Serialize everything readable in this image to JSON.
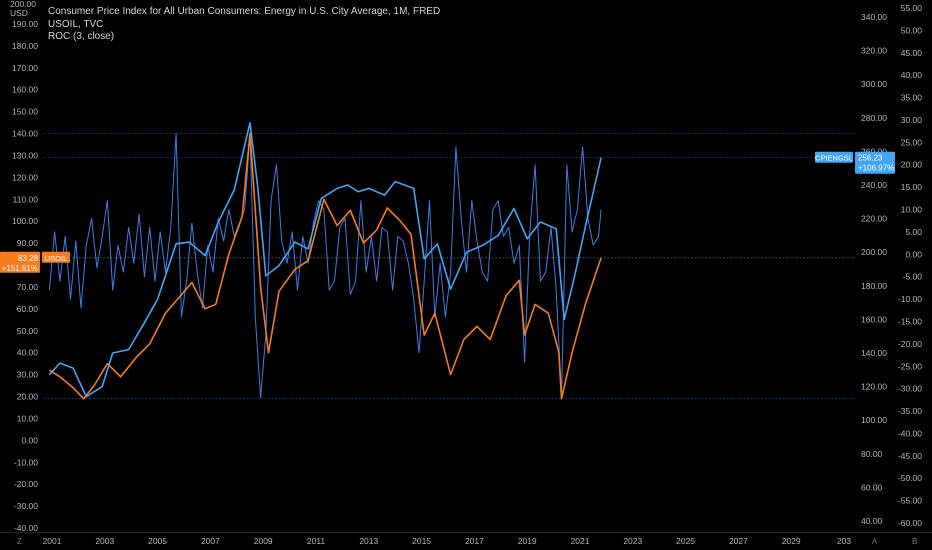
{
  "legend": {
    "main": "Consumer Price Index for All Urban Consumers: Energy in U.S. City Average, 1M, FRED",
    "usoil": "USOIL, TVC",
    "roc": "ROC (3, close)"
  },
  "currency": "USD",
  "currency_top": "200.00",
  "corner_left": "Z",
  "corner_right_a": "A",
  "corner_right_b": "B",
  "colors": {
    "background": "#000000",
    "cpi_line": "#42a5f5",
    "usoil_line": "#f57c1f",
    "roc_line": "#3d7de8",
    "axis_text": "#b2b5be"
  },
  "chart_data": {
    "type": "line",
    "x_axis": {
      "ticks": [
        "2001",
        "2003",
        "2005",
        "2007",
        "2009",
        "2011",
        "2013",
        "2015",
        "2017",
        "2019",
        "2021",
        "2023",
        "2025",
        "2027",
        "2029",
        "203"
      ]
    },
    "left_axis": {
      "label": "USD",
      "ticks": [
        "190.00",
        "180.00",
        "170.00",
        "160.00",
        "150.00",
        "140.00",
        "130.00",
        "120.00",
        "110.00",
        "100.00",
        "90.00",
        "80.00",
        "70.00",
        "60.00",
        "50.00",
        "40.00",
        "30.00",
        "20.00",
        "10.00",
        "0.00",
        "-10.00",
        "-20.00",
        "-30.00",
        "-40.00"
      ],
      "ylim": [
        -40,
        200
      ]
    },
    "mid_axis": {
      "ticks": [
        "340.00",
        "320.00",
        "300.00",
        "280.00",
        "260.00",
        "240.00",
        "220.00",
        "200.00",
        "180.00",
        "160.00",
        "140.00",
        "120.00",
        "100.00",
        "80.00",
        "60.00",
        "40.00"
      ],
      "ylim": [
        40,
        340
      ]
    },
    "right_axis": {
      "ticks": [
        "55.00",
        "50.00",
        "45.00",
        "40.00",
        "35.00",
        "30.00",
        "25.00",
        "20.00",
        "15.00",
        "10.00",
        "5.00",
        "0.00",
        "-5.00",
        "-10.00",
        "-15.00",
        "-20.00",
        "-25.00",
        "-30.00",
        "-35.00",
        "-40.00",
        "-45.00",
        "-50.00",
        "-55.00",
        "-60.00"
      ],
      "ylim": [
        -60,
        55
      ]
    },
    "series": [
      {
        "name": "CPIENGSL",
        "axis": "mid",
        "points": [
          [
            2000.9,
            127
          ],
          [
            2001.3,
            134
          ],
          [
            2001.8,
            131
          ],
          [
            2002.3,
            114
          ],
          [
            2002.9,
            120
          ],
          [
            2003.3,
            140
          ],
          [
            2003.9,
            142
          ],
          [
            2004.5,
            158
          ],
          [
            2005.0,
            172
          ],
          [
            2005.7,
            205
          ],
          [
            2006.2,
            206
          ],
          [
            2006.8,
            198
          ],
          [
            2007.3,
            218
          ],
          [
            2007.9,
            237
          ],
          [
            2008.5,
            277
          ],
          [
            2008.8,
            238
          ],
          [
            2009.1,
            186
          ],
          [
            2009.6,
            192
          ],
          [
            2010.2,
            206
          ],
          [
            2010.7,
            202
          ],
          [
            2011.2,
            232
          ],
          [
            2011.8,
            238
          ],
          [
            2012.2,
            240
          ],
          [
            2012.6,
            236
          ],
          [
            2013.0,
            238
          ],
          [
            2013.6,
            234
          ],
          [
            2014.0,
            242
          ],
          [
            2014.7,
            238
          ],
          [
            2015.1,
            196
          ],
          [
            2015.6,
            205
          ],
          [
            2016.1,
            178
          ],
          [
            2016.7,
            200
          ],
          [
            2017.3,
            204
          ],
          [
            2017.9,
            210
          ],
          [
            2018.5,
            226
          ],
          [
            2019.0,
            208
          ],
          [
            2019.5,
            218
          ],
          [
            2020.1,
            214
          ],
          [
            2020.4,
            160
          ],
          [
            2020.8,
            186
          ],
          [
            2021.2,
            215
          ],
          [
            2021.8,
            256.23
          ]
        ]
      },
      {
        "name": "USOIL",
        "axis": "left",
        "points": [
          [
            2000.9,
            32
          ],
          [
            2001.3,
            29
          ],
          [
            2001.8,
            24
          ],
          [
            2002.2,
            19
          ],
          [
            2002.6,
            25
          ],
          [
            2003.1,
            35
          ],
          [
            2003.6,
            29
          ],
          [
            2004.2,
            38
          ],
          [
            2004.7,
            44
          ],
          [
            2005.3,
            58
          ],
          [
            2005.8,
            65
          ],
          [
            2006.3,
            72
          ],
          [
            2006.8,
            60
          ],
          [
            2007.2,
            62
          ],
          [
            2007.7,
            85
          ],
          [
            2008.2,
            102
          ],
          [
            2008.5,
            140
          ],
          [
            2008.9,
            70
          ],
          [
            2009.2,
            40
          ],
          [
            2009.6,
            68
          ],
          [
            2010.2,
            78
          ],
          [
            2010.7,
            82
          ],
          [
            2011.3,
            110
          ],
          [
            2011.8,
            98
          ],
          [
            2012.3,
            105
          ],
          [
            2012.8,
            90
          ],
          [
            2013.3,
            96
          ],
          [
            2013.7,
            106
          ],
          [
            2014.2,
            100
          ],
          [
            2014.6,
            94
          ],
          [
            2015.1,
            48
          ],
          [
            2015.5,
            58
          ],
          [
            2016.1,
            30
          ],
          [
            2016.6,
            46
          ],
          [
            2017.1,
            52
          ],
          [
            2017.6,
            46
          ],
          [
            2018.2,
            66
          ],
          [
            2018.7,
            73
          ],
          [
            2018.9,
            48
          ],
          [
            2019.3,
            62
          ],
          [
            2019.8,
            58
          ],
          [
            2020.2,
            40
          ],
          [
            2020.3,
            19
          ],
          [
            2020.7,
            40
          ],
          [
            2021.2,
            62
          ],
          [
            2021.8,
            83.28
          ]
        ]
      },
      {
        "name": "ROC (3, close)",
        "axis": "right",
        "points": [
          [
            2000.9,
            -8
          ],
          [
            2001.1,
            5
          ],
          [
            2001.3,
            -6
          ],
          [
            2001.5,
            4
          ],
          [
            2001.7,
            -10
          ],
          [
            2001.9,
            3
          ],
          [
            2002.1,
            -12
          ],
          [
            2002.3,
            2
          ],
          [
            2002.5,
            8
          ],
          [
            2002.7,
            -3
          ],
          [
            2002.9,
            4
          ],
          [
            2003.1,
            12
          ],
          [
            2003.3,
            -8
          ],
          [
            2003.5,
            2
          ],
          [
            2003.7,
            -4
          ],
          [
            2003.9,
            6
          ],
          [
            2004.1,
            -2
          ],
          [
            2004.3,
            9
          ],
          [
            2004.5,
            -5
          ],
          [
            2004.7,
            6
          ],
          [
            2004.9,
            -6
          ],
          [
            2005.1,
            5
          ],
          [
            2005.3,
            -4
          ],
          [
            2005.5,
            6
          ],
          [
            2005.7,
            27
          ],
          [
            2005.9,
            -14
          ],
          [
            2006.1,
            -6
          ],
          [
            2006.3,
            7
          ],
          [
            2006.5,
            -4
          ],
          [
            2006.7,
            -12
          ],
          [
            2006.9,
            2
          ],
          [
            2007.1,
            -4
          ],
          [
            2007.3,
            8
          ],
          [
            2007.5,
            3
          ],
          [
            2007.7,
            10
          ],
          [
            2007.9,
            4
          ],
          [
            2008.1,
            7
          ],
          [
            2008.3,
            10
          ],
          [
            2008.5,
            27
          ],
          [
            2008.7,
            -14
          ],
          [
            2008.9,
            -32
          ],
          [
            2009.1,
            -18
          ],
          [
            2009.3,
            12
          ],
          [
            2009.5,
            20
          ],
          [
            2009.7,
            3
          ],
          [
            2009.9,
            -2
          ],
          [
            2010.1,
            5
          ],
          [
            2010.3,
            -8
          ],
          [
            2010.5,
            4
          ],
          [
            2010.7,
            -2
          ],
          [
            2010.9,
            7
          ],
          [
            2011.1,
            12
          ],
          [
            2011.3,
            10
          ],
          [
            2011.5,
            -8
          ],
          [
            2011.7,
            -6
          ],
          [
            2011.9,
            6
          ],
          [
            2012.1,
            8
          ],
          [
            2012.3,
            -9
          ],
          [
            2012.5,
            -6
          ],
          [
            2012.7,
            12
          ],
          [
            2012.9,
            -4
          ],
          [
            2013.1,
            4
          ],
          [
            2013.3,
            -6
          ],
          [
            2013.5,
            6
          ],
          [
            2013.7,
            5
          ],
          [
            2013.9,
            -8
          ],
          [
            2014.1,
            4
          ],
          [
            2014.3,
            3
          ],
          [
            2014.5,
            -2
          ],
          [
            2014.7,
            -10
          ],
          [
            2014.9,
            -22
          ],
          [
            2015.1,
            -6
          ],
          [
            2015.3,
            12
          ],
          [
            2015.5,
            -14
          ],
          [
            2015.7,
            -2
          ],
          [
            2015.9,
            -14
          ],
          [
            2016.1,
            -4
          ],
          [
            2016.3,
            24
          ],
          [
            2016.5,
            8
          ],
          [
            2016.7,
            -4
          ],
          [
            2016.9,
            12
          ],
          [
            2017.1,
            3
          ],
          [
            2017.3,
            -4
          ],
          [
            2017.5,
            -6
          ],
          [
            2017.7,
            10
          ],
          [
            2017.9,
            12
          ],
          [
            2018.1,
            4
          ],
          [
            2018.3,
            6
          ],
          [
            2018.5,
            -2
          ],
          [
            2018.7,
            2
          ],
          [
            2018.9,
            -24
          ],
          [
            2019.1,
            5
          ],
          [
            2019.3,
            20
          ],
          [
            2019.5,
            -6
          ],
          [
            2019.7,
            -4
          ],
          [
            2019.9,
            6
          ],
          [
            2020.1,
            -8
          ],
          [
            2020.3,
            -32
          ],
          [
            2020.5,
            20
          ],
          [
            2020.7,
            5
          ],
          [
            2020.9,
            10
          ],
          [
            2021.1,
            24
          ],
          [
            2021.3,
            8
          ],
          [
            2021.5,
            2
          ],
          [
            2021.7,
            4
          ],
          [
            2021.8,
            10
          ]
        ]
      }
    ],
    "markers": {
      "cpi": {
        "label": "CPIENGSL",
        "value": "256.23",
        "change": "+106.97%"
      },
      "usoil": {
        "label": "USOIL",
        "value": "83.28",
        "change": "+151.61%"
      }
    },
    "horizontal_lines": [
      {
        "axis": "left",
        "value": 140
      },
      {
        "axis": "left",
        "value": 129
      },
      {
        "axis": "left",
        "value": 83.28
      },
      {
        "axis": "left",
        "value": 19
      }
    ]
  }
}
